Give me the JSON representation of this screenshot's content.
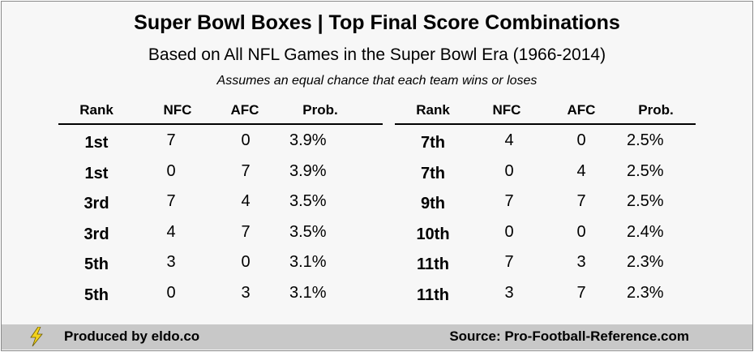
{
  "chart_data": {
    "type": "table",
    "title": "Super Bowl Boxes | Top Final Score Combinations",
    "subtitle": "Based on All NFL Games in the Super Bowl Era (1966-2014)",
    "note": "Assumes an equal chance that each team wins or loses",
    "columns": [
      "Rank",
      "NFC",
      "AFC",
      "Prob."
    ],
    "rows": [
      {
        "rank": "1st",
        "nfc": "7",
        "afc": "0",
        "prob": "3.9%"
      },
      {
        "rank": "1st",
        "nfc": "0",
        "afc": "7",
        "prob": "3.9%"
      },
      {
        "rank": "3rd",
        "nfc": "7",
        "afc": "4",
        "prob": "3.5%"
      },
      {
        "rank": "3rd",
        "nfc": "4",
        "afc": "7",
        "prob": "3.5%"
      },
      {
        "rank": "5th",
        "nfc": "3",
        "afc": "0",
        "prob": "3.1%"
      },
      {
        "rank": "5th",
        "nfc": "0",
        "afc": "3",
        "prob": "3.1%"
      },
      {
        "rank": "7th",
        "nfc": "4",
        "afc": "0",
        "prob": "2.5%"
      },
      {
        "rank": "7th",
        "nfc": "0",
        "afc": "4",
        "prob": "2.5%"
      },
      {
        "rank": "9th",
        "nfc": "7",
        "afc": "7",
        "prob": "2.5%"
      },
      {
        "rank": "10th",
        "nfc": "0",
        "afc": "0",
        "prob": "2.4%"
      },
      {
        "rank": "11th",
        "nfc": "7",
        "afc": "3",
        "prob": "2.3%"
      },
      {
        "rank": "11th",
        "nfc": "3",
        "afc": "7",
        "prob": "2.3%"
      }
    ]
  },
  "footer": {
    "produced_by": "Produced by eldo.co",
    "source": "Source: Pro-Football-Reference.com",
    "icon": "lightning-bolt-icon",
    "bar_color": "#c8c8c8",
    "bolt_color": "#f2d21b"
  }
}
